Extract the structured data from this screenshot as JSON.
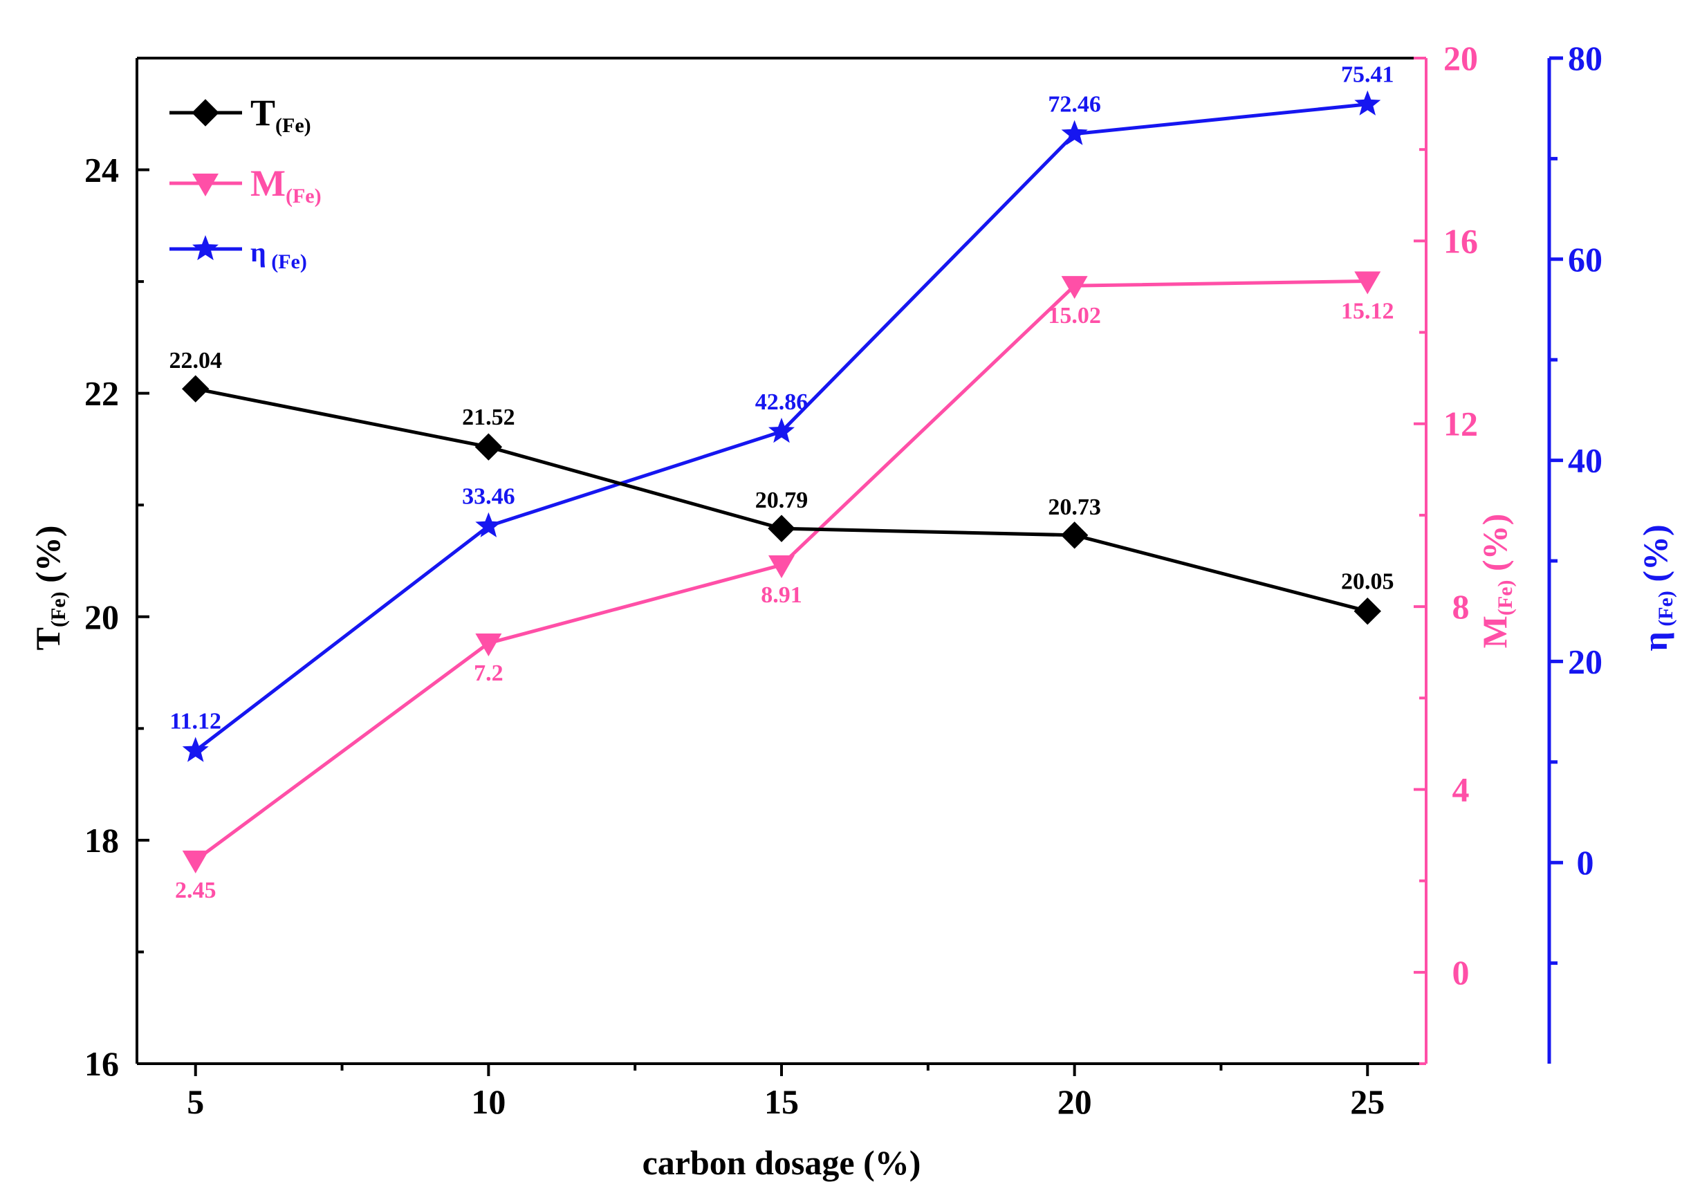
{
  "chart_data": {
    "type": "line",
    "x": [
      5,
      10,
      15,
      20,
      25
    ],
    "xlabel": "carbon dosage (%)",
    "xlim": [
      4,
      26
    ],
    "x_ticks": [
      5,
      10,
      15,
      20,
      25
    ],
    "axes": {
      "T": {
        "side": "left",
        "label_main": "T",
        "label_sub": "(Fe)",
        "label_unit": " (%)",
        "ylim": [
          16,
          25
        ],
        "ticks": [
          16,
          18,
          20,
          22,
          24
        ],
        "color": "#000000"
      },
      "M": {
        "side": "right",
        "label_main": "M",
        "label_sub": "(Fe)",
        "label_unit": " (%)",
        "ylim": [
          -2,
          20
        ],
        "ticks": [
          0,
          4,
          8,
          12,
          16,
          20
        ],
        "color": "#ff4fa7"
      },
      "eta": {
        "side": "right-offset",
        "label_main": "η",
        "label_sub": " (Fe)",
        "label_unit": " (%)",
        "ylim": [
          -20,
          80
        ],
        "ticks": [
          0,
          20,
          40,
          60,
          80
        ],
        "color": "#1616f0"
      }
    },
    "series": [
      {
        "name": "T(Fe)",
        "legend_main": "T",
        "legend_sub": "(Fe)",
        "axis": "T",
        "marker": "diamond",
        "color": "#000000",
        "values": [
          22.04,
          21.52,
          20.79,
          20.73,
          20.05
        ],
        "labels": [
          "22.04",
          "21.52",
          "20.79",
          "20.73",
          "20.05"
        ]
      },
      {
        "name": "M(Fe)",
        "legend_main": "M",
        "legend_sub": "(Fe)",
        "axis": "M",
        "marker": "triangle-down",
        "color": "#ff4fa7",
        "values": [
          2.45,
          7.2,
          8.91,
          15.02,
          15.12
        ],
        "labels": [
          "2.45",
          "7.2",
          "8.91",
          "15.02",
          "15.12"
        ]
      },
      {
        "name": "η(Fe)",
        "legend_main": "η",
        "legend_sub": " (Fe)",
        "axis": "eta",
        "marker": "star",
        "color": "#1616f0",
        "values": [
          11.12,
          33.46,
          42.86,
          72.46,
          75.41
        ],
        "labels": [
          "11.12",
          "33.46",
          "42.86",
          "72.46",
          "75.41"
        ]
      }
    ],
    "legend_position": "top-left",
    "grid": false
  }
}
